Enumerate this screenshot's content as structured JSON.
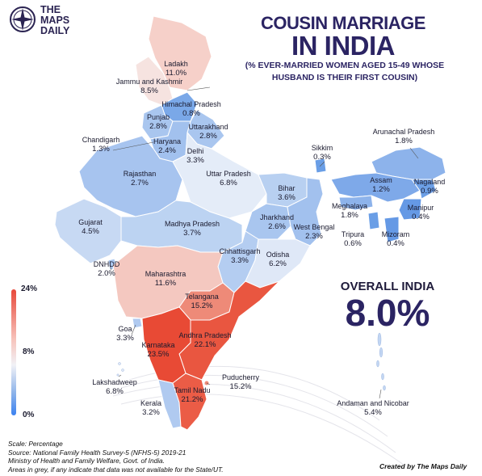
{
  "brand": {
    "logo_lines": [
      "THE",
      "MAPS",
      "DAILY"
    ]
  },
  "title": {
    "line1": "COUSIN MARRIAGE",
    "line2": "IN INDIA",
    "subtitle": "(% EVER-MARRIED WOMEN AGED 15-49 WHOSE HUSBAND IS THEIR FIRST COUSIN)"
  },
  "overall": {
    "label": "OVERALL INDIA",
    "value": "8.0%"
  },
  "legend": {
    "max": "24%",
    "mid": "8%",
    "min": "0%",
    "colors": {
      "high": "#e8483a",
      "mid": "#f1f1f6",
      "low": "#3b82f0"
    }
  },
  "regions": [
    {
      "name": "Ladakh",
      "value": "11.0%"
    },
    {
      "name": "Jammu and Kashmir",
      "value": "8.5%"
    },
    {
      "name": "Himachal Pradesh",
      "value": "0.8%"
    },
    {
      "name": "Punjab",
      "value": "2.8%"
    },
    {
      "name": "Uttarakhand",
      "value": "2.8%"
    },
    {
      "name": "Chandigarh",
      "value": "1.3%"
    },
    {
      "name": "Haryana",
      "value": "2.4%"
    },
    {
      "name": "Delhi",
      "value": "3.3%"
    },
    {
      "name": "Rajasthan",
      "value": "2.7%"
    },
    {
      "name": "Uttar Pradesh",
      "value": "6.8%"
    },
    {
      "name": "Bihar",
      "value": "3.6%"
    },
    {
      "name": "Sikkim",
      "value": "0.3%"
    },
    {
      "name": "Arunachal Pradesh",
      "value": "1.8%"
    },
    {
      "name": "Assam",
      "value": "1.2%"
    },
    {
      "name": "Nagaland",
      "value": "0.9%"
    },
    {
      "name": "Meghalaya",
      "value": "1.8%"
    },
    {
      "name": "Manipur",
      "value": "0.4%"
    },
    {
      "name": "Tripura",
      "value": "0.6%"
    },
    {
      "name": "Mizoram",
      "value": "0.4%"
    },
    {
      "name": "Gujarat",
      "value": "4.5%"
    },
    {
      "name": "Madhya Pradesh",
      "value": "3.7%"
    },
    {
      "name": "Jharkhand",
      "value": "2.6%"
    },
    {
      "name": "West Bengal",
      "value": "2.3%"
    },
    {
      "name": "DNHDD",
      "value": "2.0%"
    },
    {
      "name": "Chhattisgarh",
      "value": "3.3%"
    },
    {
      "name": "Odisha",
      "value": "6.2%"
    },
    {
      "name": "Maharashtra",
      "value": "11.6%"
    },
    {
      "name": "Telangana",
      "value": "15.2%"
    },
    {
      "name": "Goa",
      "value": "3.3%"
    },
    {
      "name": "Karnataka",
      "value": "23.5%"
    },
    {
      "name": "Andhra Pradesh",
      "value": "22.1%"
    },
    {
      "name": "Lakshadweep",
      "value": "6.8%"
    },
    {
      "name": "Puducherry",
      "value": "15.2%"
    },
    {
      "name": "Tamil Nadu",
      "value": "21.2%"
    },
    {
      "name": "Kerala",
      "value": "3.2%"
    },
    {
      "name": "Andaman and Nicobar",
      "value": "5.4%"
    }
  ],
  "footer": {
    "lines": [
      "Scale: Percentage",
      "Source: National Family Health Survey-5 (NFHS-5) 2019-21",
      "Ministry of Health and Family Welfare, Govt. of India.",
      "Areas in grey, if any indicate that data was not available for the State/UT."
    ],
    "credit": "Created by The Maps Daily"
  }
}
